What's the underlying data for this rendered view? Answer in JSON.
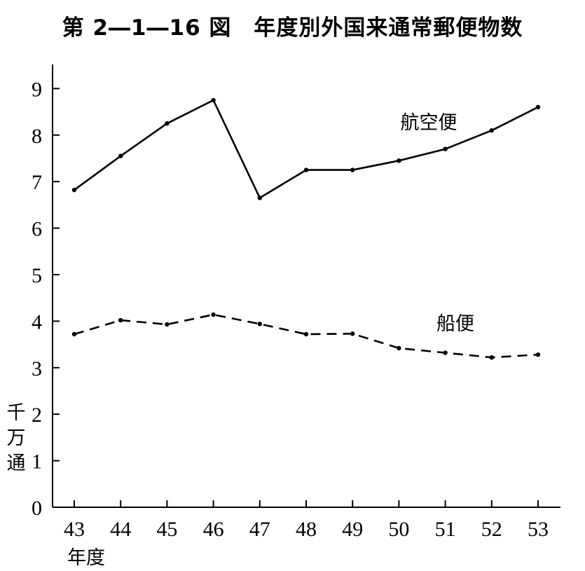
{
  "chart_data": {
    "type": "line",
    "title": "第 2―1―16 図　年度別外国来通常郵便物数",
    "ylabel": [
      "千",
      "万",
      "通"
    ],
    "xlabel": "年度",
    "x": [
      "43",
      "44",
      "45",
      "46",
      "47",
      "48",
      "49",
      "50",
      "51",
      "52",
      "53"
    ],
    "yticks": [
      0,
      1,
      2,
      3,
      4,
      5,
      6,
      7,
      8,
      9
    ],
    "ylim": [
      0,
      9.5
    ],
    "grid": false,
    "series": [
      {
        "name": "航空便",
        "style": "solid",
        "values": [
          6.82,
          7.55,
          8.25,
          8.75,
          6.65,
          7.25,
          7.25,
          7.45,
          7.7,
          8.1,
          8.6
        ]
      },
      {
        "name": "船便",
        "style": "dashed",
        "values": [
          3.72,
          4.02,
          3.93,
          4.14,
          3.94,
          3.72,
          3.73,
          3.42,
          3.32,
          3.22,
          3.28
        ]
      }
    ]
  }
}
